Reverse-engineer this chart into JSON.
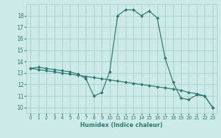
{
  "xlabel": "Humidex (Indice chaleur)",
  "background_color": "#cceae8",
  "grid_color": "#aacccc",
  "line_color": "#2d7a6e",
  "marker_color": "#2d7a6e",
  "xlim": [
    -0.5,
    23.5
  ],
  "ylim": [
    9.5,
    19.0
  ],
  "yticks": [
    10,
    11,
    12,
    13,
    14,
    15,
    16,
    17,
    18
  ],
  "xticks": [
    0,
    1,
    2,
    3,
    4,
    5,
    6,
    7,
    8,
    9,
    10,
    11,
    12,
    13,
    14,
    15,
    16,
    17,
    18,
    19,
    20,
    21,
    22,
    23
  ],
  "line1_x": [
    0,
    1,
    2,
    3,
    4,
    5,
    6,
    7,
    8,
    9,
    10,
    11,
    12,
    13,
    14,
    15,
    16,
    17,
    18,
    19,
    20,
    21,
    22,
    23
  ],
  "line1_y": [
    13.4,
    13.5,
    13.4,
    13.3,
    13.2,
    13.1,
    12.9,
    12.5,
    11.0,
    11.3,
    13.1,
    18.0,
    18.5,
    18.5,
    18.0,
    18.4,
    17.8,
    14.3,
    12.2,
    10.8,
    10.7,
    11.1,
    11.0,
    10.0
  ],
  "line2_x": [
    0,
    1,
    2,
    3,
    4,
    5,
    6,
    7,
    8,
    9,
    10,
    11,
    12,
    13,
    14,
    15,
    16,
    17,
    18,
    19,
    20,
    21,
    22,
    23
  ],
  "line2_y": [
    13.4,
    13.3,
    13.2,
    13.1,
    13.0,
    12.9,
    12.8,
    12.7,
    12.6,
    12.5,
    12.4,
    12.3,
    12.2,
    12.1,
    12.0,
    11.9,
    11.8,
    11.7,
    11.6,
    11.5,
    11.3,
    11.2,
    11.0,
    10.0
  ]
}
